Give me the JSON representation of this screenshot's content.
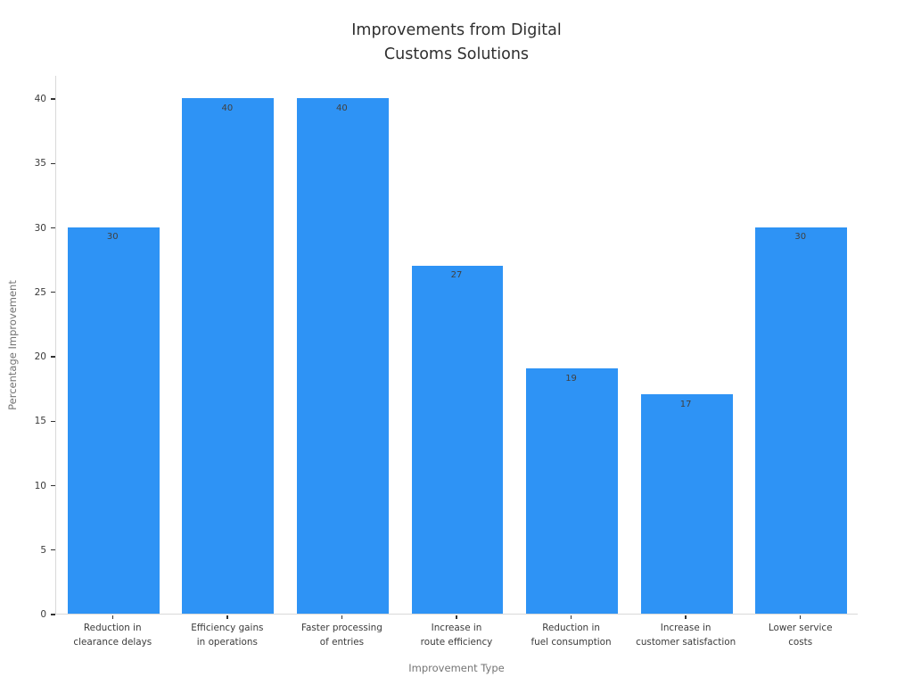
{
  "title_display": "Improvements from Digital\nCustoms Solutions",
  "chart_data": {
    "type": "bar",
    "title": "Improvements from Digital Customs Solutions",
    "categories": [
      "Reduction in\nclearance delays",
      "Efficiency gains\nin operations",
      "Faster processing\nof entries",
      "Increase in\nroute efficiency",
      "Reduction in\nfuel consumption",
      "Increase in\ncustomer satisfaction",
      "Lower service\ncosts"
    ],
    "values": [
      30,
      40,
      40,
      27,
      19,
      17,
      30
    ],
    "value_labels": [
      "30",
      "40",
      "40",
      "27",
      "19",
      "17",
      "30"
    ],
    "xlabel": "Improvement Type",
    "ylabel": "Percentage Improvement",
    "ylim": [
      0,
      42
    ],
    "yticks": [
      0,
      5,
      10,
      15,
      20,
      25,
      30,
      35,
      40
    ],
    "grid": false,
    "legend": "none",
    "bar_width_fraction": 0.8
  },
  "colors": {
    "background": "#ffffff",
    "bar": "#2e93f5",
    "axis_line": "#d9d9d9",
    "tick_mark": "#333333",
    "tick_label": "#3b3b3b",
    "value_label": "#404040",
    "axis_title": "#757575",
    "title": "#2f2f2f"
  }
}
